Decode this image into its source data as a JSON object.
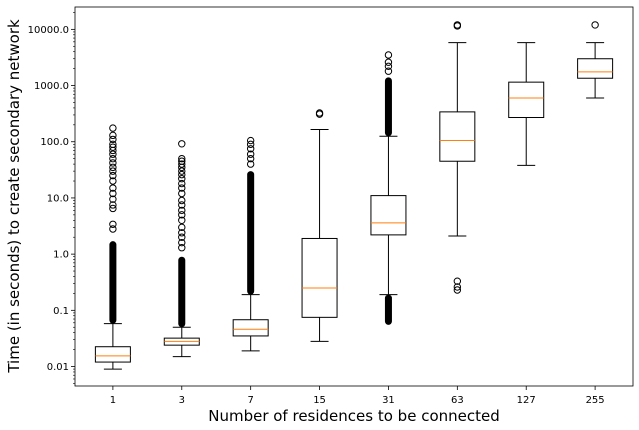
{
  "chart_data": {
    "type": "box",
    "xlabel": "Number of residences to be connected",
    "ylabel": "Time (in seconds) to create secondary network",
    "yscale": "log",
    "ylim": [
      0.0045,
      25000
    ],
    "y_ticks": [
      0.01,
      0.1,
      1.0,
      10.0,
      100.0,
      1000.0,
      10000.0
    ],
    "y_tick_labels": [
      "0.01",
      "0.1",
      "1.0",
      "10.0",
      "100.0",
      "1000.0",
      "10000.0"
    ],
    "grid": false,
    "median_color": "#ff7f0e",
    "box_color": "#000000",
    "categories": [
      "1",
      "3",
      "7",
      "15",
      "31",
      "63",
      "127",
      "255"
    ],
    "boxes": [
      {
        "category": "1",
        "whisker_low": 0.009,
        "q1": 0.012,
        "median": 0.0155,
        "q3": 0.0225,
        "whisker_high": 0.058,
        "outliers_dense": [
          0.058,
          1.7
        ],
        "outliers": [
          2.8,
          3.4,
          6.5,
          7.5,
          9.5,
          12,
          15,
          20,
          25,
          30,
          35,
          42,
          50,
          60,
          70,
          80,
          90,
          110,
          130,
          175
        ]
      },
      {
        "category": "3",
        "whisker_low": 0.015,
        "q1": 0.024,
        "median": 0.028,
        "q3": 0.032,
        "whisker_high": 0.05,
        "outliers_dense": [
          0.05,
          0.9
        ],
        "outliers": [
          1.3,
          1.6,
          2.0,
          2.4,
          3.0,
          4.0,
          5.0,
          6.0,
          7.5,
          9.0,
          12,
          15,
          18,
          22,
          26,
          30,
          35,
          40,
          45,
          50,
          92
        ]
      },
      {
        "category": "7",
        "whisker_low": 0.019,
        "q1": 0.035,
        "median": 0.046,
        "q3": 0.068,
        "whisker_high": 0.19,
        "outliers_dense": [
          0.19,
          30
        ],
        "outliers": [
          40,
          50,
          60,
          75,
          90,
          105
        ]
      },
      {
        "category": "15",
        "whisker_low": 0.028,
        "q1": 0.075,
        "median": 0.25,
        "q3": 1.9,
        "whisker_high": 165,
        "outliers": [
          310,
          325
        ]
      },
      {
        "category": "31",
        "whisker_low": 0.19,
        "q1": 2.2,
        "median": 3.6,
        "q3": 11,
        "whisker_high": 125,
        "outliers_dense_high": [
          125,
          1400
        ],
        "outliers_dense_low": [
          0.055,
          0.19
        ],
        "outliers": [
          1800,
          2200,
          2600,
          3500
        ]
      },
      {
        "category": "63",
        "whisker_low": 2.1,
        "q1": 45,
        "median": 105,
        "q3": 340,
        "whisker_high": 5800,
        "outliers": [
          0.23,
          0.26,
          0.33,
          11500,
          12000
        ]
      },
      {
        "category": "127",
        "whisker_low": 38,
        "q1": 270,
        "median": 600,
        "q3": 1150,
        "whisker_high": 5800,
        "outliers": []
      },
      {
        "category": "255",
        "whisker_low": 600,
        "q1": 1350,
        "median": 1750,
        "q3": 3000,
        "whisker_high": 5800,
        "outliers": [
          12000
        ]
      }
    ]
  }
}
